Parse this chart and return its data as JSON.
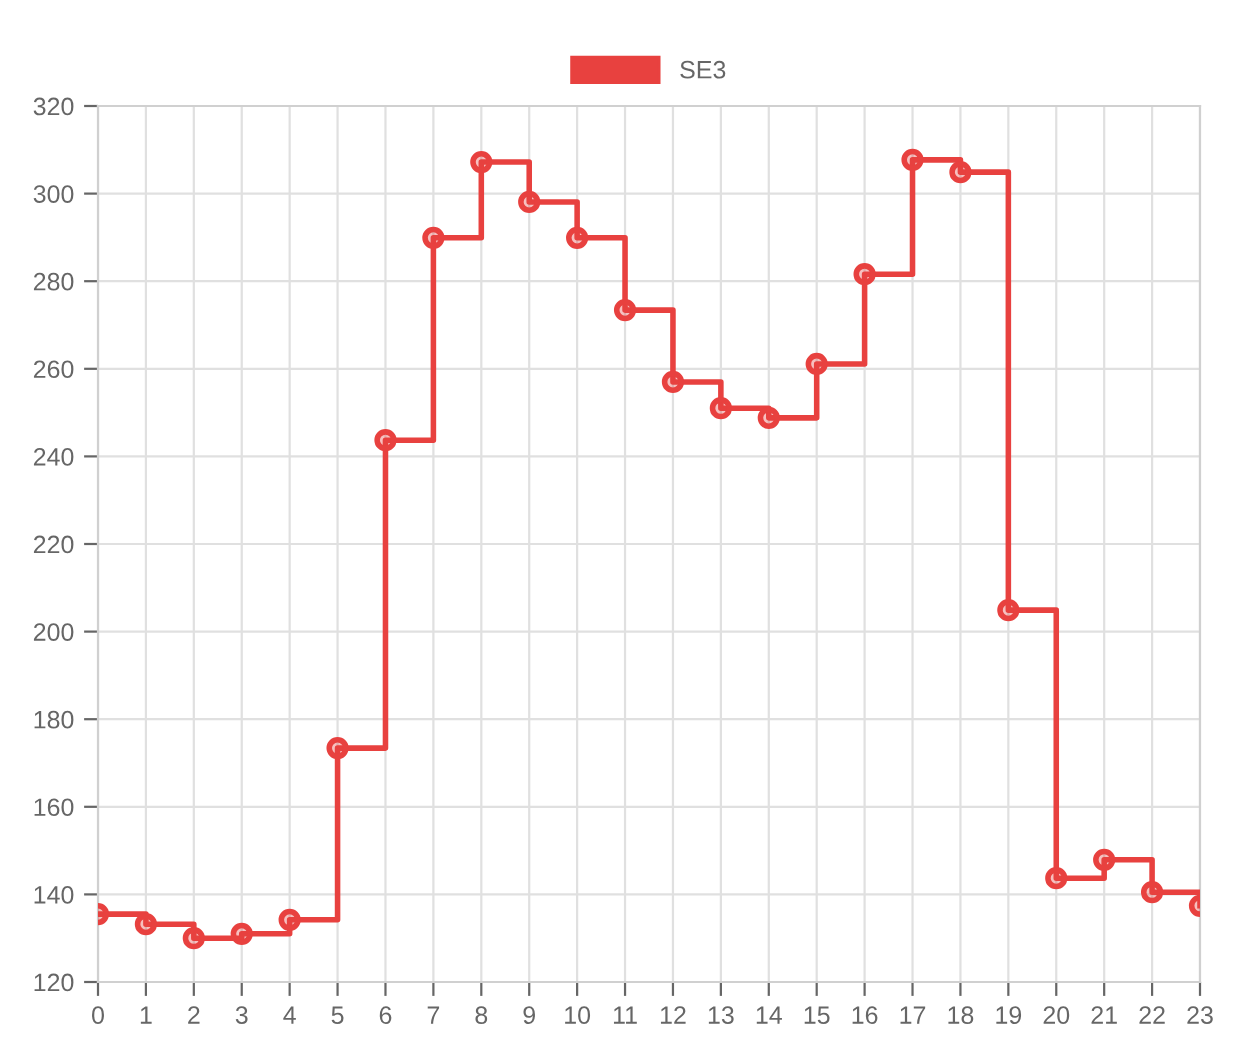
{
  "chart_data": {
    "type": "step",
    "categories": [
      "0",
      "1",
      "2",
      "3",
      "4",
      "5",
      "6",
      "7",
      "8",
      "9",
      "10",
      "11",
      "12",
      "13",
      "14",
      "15",
      "16",
      "17",
      "18",
      "19",
      "20",
      "21",
      "22",
      "23"
    ],
    "series": [
      {
        "name": "SE3",
        "color": "#e8413f",
        "values": [
          135.5,
          133.2,
          130,
          131,
          134.2,
          173.4,
          243.7,
          289.9,
          307.2,
          298.1,
          289.9,
          273.4,
          257,
          251,
          248.8,
          261.1,
          281.6,
          307.7,
          304.9,
          204.9,
          143.7,
          147.9,
          140.5,
          137.4
        ]
      }
    ],
    "ylim": [
      120,
      320
    ],
    "yticks": [
      120,
      140,
      160,
      180,
      200,
      220,
      240,
      260,
      280,
      300,
      320
    ],
    "grid": true,
    "legend": "top",
    "marker": "circle",
    "line_style": "solid"
  }
}
